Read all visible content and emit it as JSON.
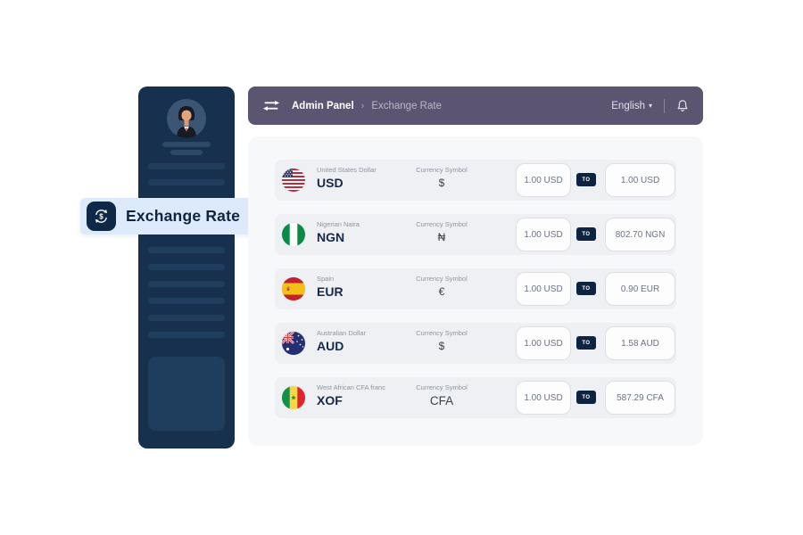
{
  "header": {
    "breadcrumb_root": "Admin Panel",
    "breadcrumb_separator": "›",
    "breadcrumb_current": "Exchange Rate",
    "language": "English",
    "language_chevron": "▾"
  },
  "floating_label": {
    "text": "Exchange Rate"
  },
  "rates": {
    "symbol_label": "Currency Symbol",
    "to_badge": "TO",
    "rows": [
      {
        "flag": "us",
        "name": "United States Dollar",
        "code": "USD",
        "symbol": "$",
        "from": "1.00 USD",
        "to": "1.00 USD"
      },
      {
        "flag": "ng",
        "name": "Nigerian Naira",
        "code": "NGN",
        "symbol": "₦",
        "from": "1.00 USD",
        "to": "802.70 NGN"
      },
      {
        "flag": "es",
        "name": "Spain",
        "code": "EUR",
        "symbol": "€",
        "from": "1.00 USD",
        "to": "0.90 EUR"
      },
      {
        "flag": "au",
        "name": "Australian Dollar",
        "code": "AUD",
        "symbol": "$",
        "from": "1.00 USD",
        "to": "1.58 AUD"
      },
      {
        "flag": "sn",
        "name": "West African CFA franc",
        "code": "XOF",
        "symbol": "CFA",
        "from": "1.00 USD",
        "to": "587.29 CFA"
      }
    ]
  },
  "colors": {
    "sidebar": "#16304e",
    "header_bar": "#5c5571",
    "panel": "#f7f8f9",
    "row": "#eef0f3",
    "to_badge": "#0c2440",
    "float_label_bg": "#dceafc",
    "float_icon_bg": "#0d2947",
    "code_text": "#16294b"
  }
}
